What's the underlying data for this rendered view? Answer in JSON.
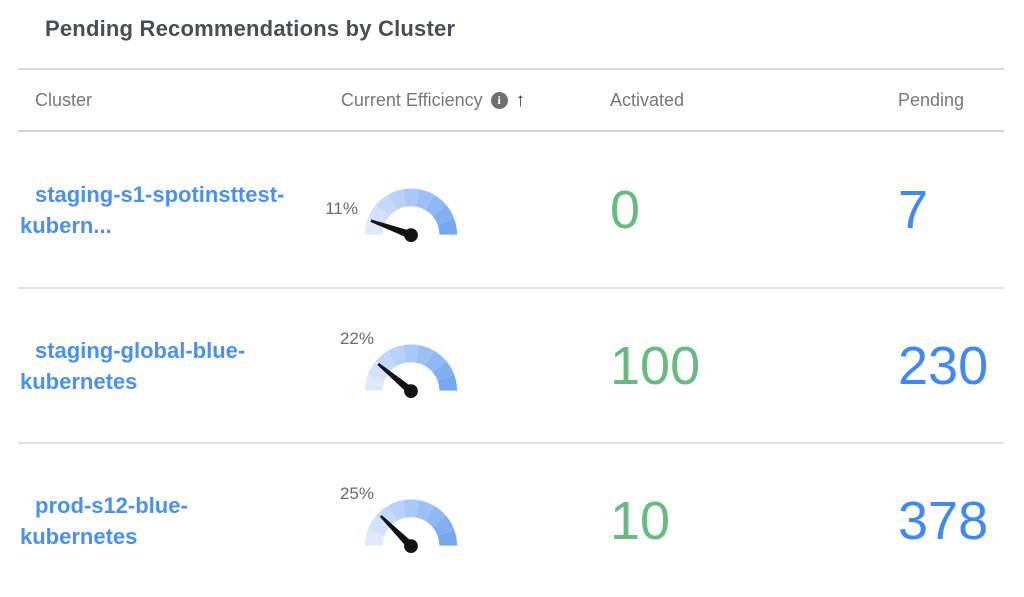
{
  "widget": {
    "title": "Pending Recommendations by Cluster"
  },
  "columns": {
    "cluster": "Cluster",
    "efficiency": "Current Efficiency",
    "activated": "Activated",
    "pending": "Pending"
  },
  "icons": {
    "info": "i",
    "sort_ascending": "↑"
  },
  "colors": {
    "link_blue": "#4a90f2",
    "value_green": "#68ba80",
    "value_blue": "#4089f4",
    "gauge_start": "#deeafb",
    "gauge_end": "#75a7f3",
    "needle": "#141414",
    "header_gray": "#76777b"
  },
  "rows": [
    {
      "cluster": "staging-s1-spotinsttest-kubern...",
      "efficiency_label": "11%",
      "activated": "0",
      "pending": "7"
    },
    {
      "cluster": "staging-global-blue-kubernetes",
      "efficiency_label": "22%",
      "activated": "100",
      "pending": "230"
    },
    {
      "cluster": "prod-s12-blue-kubernetes",
      "efficiency_label": "25%",
      "activated": "10",
      "pending": "378"
    }
  ],
  "chart_data": {
    "type": "gauge",
    "title": "Current Efficiency",
    "unit": "%",
    "range": [
      0,
      100
    ],
    "gauge_segments": 9,
    "values": [
      {
        "cluster": "staging-s1-spotinsttest-kubern...",
        "current_efficiency": 11,
        "activated": 0,
        "pending": 7
      },
      {
        "cluster": "staging-global-blue-kubernetes",
        "current_efficiency": 22,
        "activated": 100,
        "pending": 230
      },
      {
        "cluster": "prod-s12-blue-kubernetes",
        "current_efficiency": 25,
        "activated": 10,
        "pending": 378
      }
    ]
  }
}
